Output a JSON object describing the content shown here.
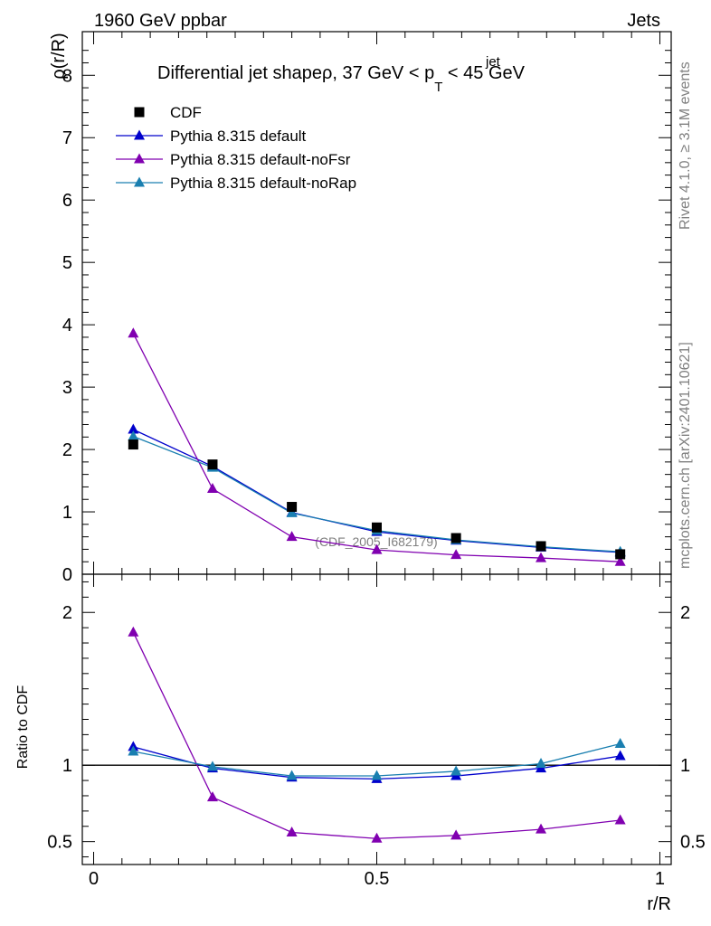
{
  "header": {
    "left": "1960 GeV ppbar",
    "right": "Jets"
  },
  "side_labels": {
    "top": "Rivet 4.1.0, ≥ 3.1M events",
    "bottom": "mcplots.cern.ch [arXiv:2401.10621]"
  },
  "watermark": "(CDF_2005_I682179)",
  "chart_data": {
    "type": "line",
    "title": "Differential jet shapeρ, 37 GeV < p",
    "title_sup": "jet",
    "title_sub": "T",
    "title_end": " < 45 GeV",
    "xlabel": "r/R",
    "ylabel": "ρ(r/R)",
    "ratio_ylabel": "Ratio to CDF",
    "xlim": [
      -0.02,
      1.02
    ],
    "ylim": [
      0,
      8.7
    ],
    "ratio_ylim": [
      0.35,
      2.25
    ],
    "x_ticks": [
      "0",
      "0.5",
      "1"
    ],
    "x_tick_values": [
      0,
      0.5,
      1
    ],
    "y_ticks": [
      "0",
      "1",
      "2",
      "3",
      "4",
      "5",
      "6",
      "7",
      "8"
    ],
    "y_tick_values": [
      0,
      1,
      2,
      3,
      4,
      5,
      6,
      7,
      8
    ],
    "ratio_ticks": [
      "0.5",
      "1",
      "2"
    ],
    "ratio_tick_values": [
      0.5,
      1,
      2
    ],
    "x": [
      0.07,
      0.21,
      0.35,
      0.5,
      0.64,
      0.79,
      0.93
    ],
    "series": [
      {
        "name": "CDF",
        "color": "#000000",
        "marker": "square",
        "values": [
          2.08,
          1.76,
          1.08,
          0.75,
          0.58,
          0.45,
          0.32
        ],
        "ratio": [
          1.0,
          1.0,
          1.0,
          1.0,
          1.0,
          1.0,
          1.0
        ]
      },
      {
        "name": "Pythia 8.315 default",
        "color": "#0000cc",
        "marker": "triangle",
        "values": [
          2.32,
          1.73,
          0.99,
          0.68,
          0.54,
          0.43,
          0.35
        ],
        "ratio": [
          1.12,
          0.98,
          0.92,
          0.91,
          0.93,
          0.98,
          1.06
        ]
      },
      {
        "name": "Pythia 8.315 default-noFsr",
        "color": "#8000b0",
        "marker": "triangle",
        "values": [
          3.86,
          1.37,
          0.6,
          0.39,
          0.31,
          0.26,
          0.2
        ],
        "ratio": [
          1.87,
          0.79,
          0.56,
          0.52,
          0.54,
          0.58,
          0.64
        ]
      },
      {
        "name": "Pythia 8.315 default-noRap",
        "color": "#1a7fb0",
        "marker": "triangle",
        "values": [
          2.21,
          1.71,
          0.98,
          0.7,
          0.55,
          0.44,
          0.36
        ],
        "ratio": [
          1.09,
          0.99,
          0.93,
          0.93,
          0.96,
          1.01,
          1.14
        ]
      }
    ]
  }
}
